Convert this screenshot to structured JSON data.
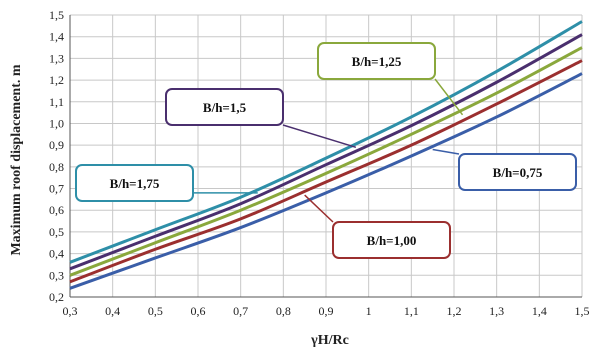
{
  "chart_data": {
    "type": "line",
    "title": "",
    "xlabel": "γH/Rc",
    "ylabel": "Maximum roof displacement. m",
    "xlim": [
      0.3,
      1.5
    ],
    "ylim": [
      0.2,
      1.5
    ],
    "x_ticks": [
      "0,3",
      "0,4",
      "0,5",
      "0,6",
      "0,7",
      "0,8",
      "0,9",
      "1",
      "1,1",
      "1,2",
      "1,3",
      "1,4",
      "1,5"
    ],
    "y_ticks": [
      "0,2",
      "0,3",
      "0,4",
      "0,5",
      "0,6",
      "0,7",
      "0,8",
      "0,9",
      "1,0",
      "1,1",
      "1,2",
      "1,3",
      "1,4",
      "1,5"
    ],
    "grid": true,
    "legend": "callout labels",
    "series": [
      {
        "name": "B/h=1,75",
        "color": "#2e8fa8",
        "x": [
          0.3,
          0.5,
          0.7,
          0.9,
          1.1,
          1.3,
          1.5
        ],
        "y": [
          0.36,
          0.51,
          0.66,
          0.84,
          1.03,
          1.24,
          1.47
        ]
      },
      {
        "name": "B/h=1,5",
        "color": "#4a2f6e",
        "x": [
          0.3,
          0.5,
          0.7,
          0.9,
          1.1,
          1.3,
          1.5
        ],
        "y": [
          0.33,
          0.48,
          0.63,
          0.81,
          0.99,
          1.19,
          1.41
        ]
      },
      {
        "name": "B/h=1,25",
        "color": "#8aa83c",
        "x": [
          0.3,
          0.5,
          0.7,
          0.9,
          1.1,
          1.3,
          1.5
        ],
        "y": [
          0.3,
          0.45,
          0.6,
          0.77,
          0.95,
          1.14,
          1.35
        ]
      },
      {
        "name": "B/h=1,00",
        "color": "#9b2f2f",
        "x": [
          0.3,
          0.5,
          0.7,
          0.9,
          1.1,
          1.3,
          1.5
        ],
        "y": [
          0.27,
          0.42,
          0.56,
          0.73,
          0.9,
          1.09,
          1.29
        ]
      },
      {
        "name": "B/h=0,75",
        "color": "#3a5ea8",
        "x": [
          0.3,
          0.5,
          0.7,
          0.9,
          1.1,
          1.3,
          1.5
        ],
        "y": [
          0.24,
          0.38,
          0.52,
          0.68,
          0.85,
          1.03,
          1.23
        ]
      }
    ],
    "callouts": [
      {
        "series": "B/h=1,25",
        "text": "B/h=1,25",
        "anchor_x": 1.22,
        "anchor_y": 1.04
      },
      {
        "series": "B/h=1,5",
        "text": "B/h=1,5",
        "anchor_x": 0.97,
        "anchor_y": 0.89
      },
      {
        "series": "B/h=1,75",
        "text": "B/h=1,75",
        "anchor_x": 0.74,
        "anchor_y": 0.68
      },
      {
        "series": "B/h=0,75",
        "text": "B/h=0,75",
        "anchor_x": 1.15,
        "anchor_y": 0.88
      },
      {
        "series": "B/h=1,00",
        "text": "B/h=1,00",
        "anchor_x": 0.85,
        "anchor_y": 0.67
      }
    ]
  }
}
